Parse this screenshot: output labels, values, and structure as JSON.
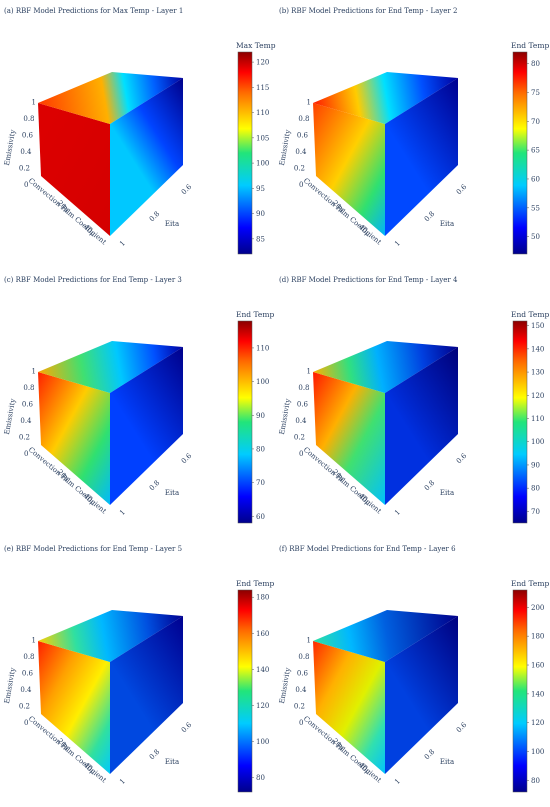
{
  "chart_data": [
    {
      "type": "heatmap",
      "subtype": "3d-volume-cube",
      "title": "(a) RBF Model Predictions for Max Temp - Layer 1",
      "colorbar_title": "Max Temp",
      "colorbar_range": [
        82,
        122
      ],
      "colorbar_ticks": [
        85,
        90,
        95,
        100,
        105,
        110,
        115,
        120
      ],
      "xaxis": {
        "label": "Convection Film Coefficient",
        "ticks": [
          "20μ",
          "40μ"
        ]
      },
      "yaxis": {
        "label": "Eita",
        "ticks": [
          "0.6",
          "0.8",
          "1"
        ]
      },
      "zaxis": {
        "label": "Emissivity",
        "ticks": [
          "0",
          "0.2",
          "0.4",
          "0.6",
          "0.8",
          "1"
        ]
      },
      "colorscale": "jet"
    },
    {
      "type": "heatmap",
      "subtype": "3d-volume-cube",
      "title": "(b) RBF Model Predictions for End Temp - Layer 2",
      "colorbar_title": "End Temp",
      "colorbar_range": [
        47,
        82
      ],
      "colorbar_ticks": [
        50,
        55,
        60,
        65,
        70,
        75,
        80
      ],
      "xaxis": {
        "label": "Convection Film Coefficient",
        "ticks": [
          "20μ",
          "40μ"
        ]
      },
      "yaxis": {
        "label": "Eita",
        "ticks": [
          "0.6",
          "0.8",
          "1"
        ]
      },
      "zaxis": {
        "label": "Emissivity",
        "ticks": [
          "0",
          "0.2",
          "0.4",
          "0.6",
          "0.8",
          "1"
        ]
      },
      "colorscale": "jet"
    },
    {
      "type": "heatmap",
      "subtype": "3d-volume-cube",
      "title": "(c) RBF Model Predictions for End Temp - Layer 3",
      "colorbar_title": "End Temp",
      "colorbar_range": [
        58,
        118
      ],
      "colorbar_ticks": [
        60,
        70,
        80,
        90,
        100,
        110
      ],
      "xaxis": {
        "label": "Convection Film Coefficient",
        "ticks": [
          "20μ",
          "40μ"
        ]
      },
      "yaxis": {
        "label": "Eita",
        "ticks": [
          "0.6",
          "0.8",
          "1"
        ]
      },
      "zaxis": {
        "label": "Emissivity",
        "ticks": [
          "0",
          "0.2",
          "0.4",
          "0.6",
          "0.8",
          "1"
        ]
      },
      "colorscale": "jet"
    },
    {
      "type": "heatmap",
      "subtype": "3d-volume-cube",
      "title": "(d) RBF Model Predictions for End Temp - Layer 4",
      "colorbar_title": "End Temp",
      "colorbar_range": [
        65,
        152
      ],
      "colorbar_ticks": [
        70,
        80,
        90,
        100,
        110,
        120,
        130,
        140,
        150
      ],
      "xaxis": {
        "label": "Convection Film Coefficient",
        "ticks": [
          "20μ",
          "40μ"
        ]
      },
      "yaxis": {
        "label": "Eita",
        "ticks": [
          "0.6",
          "0.8",
          "1"
        ]
      },
      "zaxis": {
        "label": "Emissivity",
        "ticks": [
          "0",
          "0.2",
          "0.4",
          "0.6",
          "0.8",
          "1"
        ]
      },
      "colorscale": "jet"
    },
    {
      "type": "heatmap",
      "subtype": "3d-volume-cube",
      "title": "(e) RBF Model Predictions for End Temp - Layer 5",
      "colorbar_title": "End Temp",
      "colorbar_range": [
        72,
        184
      ],
      "colorbar_ticks": [
        80,
        100,
        120,
        140,
        160,
        180
      ],
      "xaxis": {
        "label": "Convection Film Coefficient",
        "ticks": [
          "20μ",
          "40μ"
        ]
      },
      "yaxis": {
        "label": "Eita",
        "ticks": [
          "0.6",
          "0.8",
          "1"
        ]
      },
      "zaxis": {
        "label": "Emissivity",
        "ticks": [
          "0",
          "0.2",
          "0.4",
          "0.6",
          "0.8",
          "1"
        ]
      },
      "colorscale": "jet"
    },
    {
      "type": "heatmap",
      "subtype": "3d-volume-cube",
      "title": "(f) RBF Model Predictions for End Temp - Layer 6",
      "colorbar_title": "End Temp",
      "colorbar_range": [
        72,
        212
      ],
      "colorbar_ticks": [
        80,
        100,
        120,
        140,
        160,
        180,
        200
      ],
      "xaxis": {
        "label": "Convection Film Coefficient",
        "ticks": [
          "20μ",
          "40μ"
        ]
      },
      "yaxis": {
        "label": "Eita",
        "ticks": [
          "0.6",
          "0.8",
          "1"
        ]
      },
      "zaxis": {
        "label": "Emissivity",
        "ticks": [
          "0",
          "0.2",
          "0.4",
          "0.6",
          "0.8",
          "1"
        ]
      },
      "colorscale": "jet"
    }
  ]
}
